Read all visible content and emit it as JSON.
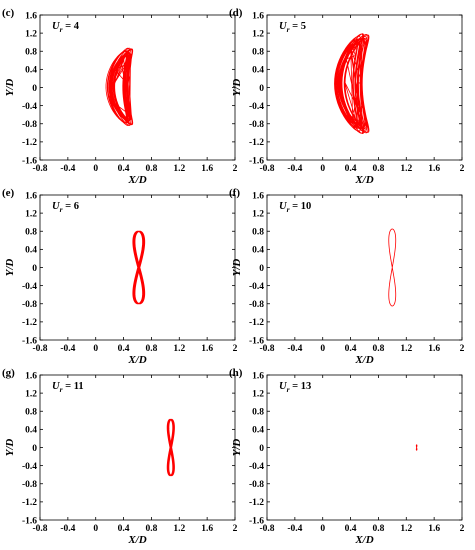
{
  "figure": {
    "series_color": "#ff0000",
    "axis_color": "#000000"
  },
  "chart_data": [
    {
      "type": "line",
      "panel_label": "(c)",
      "annotation": {
        "symbol": "U",
        "subscript": "r",
        "equals": " = ",
        "value": "4"
      },
      "xlabel": "X/D",
      "ylabel": "Y/D",
      "xlim": [
        -0.8,
        2
      ],
      "ylim": [
        -1.6,
        1.6
      ],
      "xticks": [
        "-0.8",
        "-0.4",
        "0",
        "0.4",
        "0.8",
        "1.2",
        "1.6",
        "2"
      ],
      "yticks": [
        "1.6",
        "1.2",
        "0.8",
        "0.4",
        "0",
        "-0.4",
        "-0.8",
        "-1.2",
        "-1.6"
      ],
      "orbit": {
        "shape": "chaotic-crescent",
        "x_min": 0.05,
        "x_max": 0.75,
        "y_min": -0.85,
        "y_max": 0.88
      }
    },
    {
      "type": "line",
      "panel_label": "(d)",
      "annotation": {
        "symbol": "U",
        "subscript": "r",
        "equals": " = ",
        "value": "5"
      },
      "xlabel": "X/D",
      "ylabel": "Y/D",
      "xlim": [
        -0.8,
        2
      ],
      "ylim": [
        -1.6,
        1.6
      ],
      "xticks": [
        "-0.8",
        "-0.4",
        "0",
        "0.4",
        "0.8",
        "1.2",
        "1.6",
        "2"
      ],
      "yticks": [
        "1.6",
        "1.2",
        "0.8",
        "0.4",
        "0",
        "-0.4",
        "-0.8",
        "-1.2",
        "-1.6"
      ],
      "orbit": {
        "shape": "chaotic-crescent",
        "x_min": 0.0,
        "x_max": 0.95,
        "y_min": -1.05,
        "y_max": 1.22
      }
    },
    {
      "type": "line",
      "panel_label": "(e)",
      "annotation": {
        "symbol": "U",
        "subscript": "r",
        "equals": " = ",
        "value": "6"
      },
      "xlabel": "X/D",
      "ylabel": "Y/D",
      "xlim": [
        -0.8,
        2
      ],
      "ylim": [
        -1.6,
        1.6
      ],
      "xticks": [
        "-0.8",
        "-0.4",
        "0",
        "0.4",
        "0.8",
        "1.2",
        "1.6",
        "2"
      ],
      "yticks": [
        "1.6",
        "1.2",
        "0.8",
        "0.4",
        "0",
        "-0.4",
        "-0.8",
        "-1.2",
        "-1.6"
      ],
      "orbit": {
        "shape": "figure-eight",
        "x_center": 0.62,
        "half_width": 0.07,
        "y_amplitude": 0.8,
        "cycles": 10
      }
    },
    {
      "type": "line",
      "panel_label": "(f)",
      "annotation": {
        "symbol": "U",
        "subscript": "r",
        "equals": " = ",
        "value": "10"
      },
      "xlabel": "X/D",
      "ylabel": "Y/D",
      "xlim": [
        -0.8,
        2
      ],
      "ylim": [
        -1.6,
        1.6
      ],
      "xticks": [
        "-0.8",
        "-0.4",
        "0",
        "0.4",
        "0.8",
        "1.2",
        "1.6",
        "2"
      ],
      "yticks": [
        "1.6",
        "1.2",
        "0.8",
        "0.4",
        "0",
        "-0.4",
        "-0.8",
        "-1.2",
        "-1.6"
      ],
      "orbit": {
        "shape": "figure-eight",
        "x_center": 1.0,
        "half_width": 0.05,
        "y_amplitude": 0.85,
        "cycles": 1
      }
    },
    {
      "type": "line",
      "panel_label": "(g)",
      "annotation": {
        "symbol": "U",
        "subscript": "r",
        "equals": " = ",
        "value": "11"
      },
      "xlabel": "X/D",
      "ylabel": "Y/D",
      "xlim": [
        -0.8,
        2
      ],
      "ylim": [
        -1.6,
        1.6
      ],
      "xticks": [
        "-0.8",
        "-0.4",
        "0",
        "0.4",
        "0.8",
        "1.2",
        "1.6",
        "2"
      ],
      "yticks": [
        "1.6",
        "1.2",
        "0.8",
        "0.4",
        "0",
        "-0.4",
        "-0.8",
        "-1.2",
        "-1.6"
      ],
      "orbit": {
        "shape": "figure-eight",
        "x_center": 1.08,
        "half_width": 0.04,
        "y_amplitude": 0.62,
        "cycles": 8
      }
    },
    {
      "type": "line",
      "panel_label": "(h)",
      "annotation": {
        "symbol": "U",
        "subscript": "r",
        "equals": " = ",
        "value": "13"
      },
      "xlabel": "X/D",
      "ylabel": "Y/D",
      "xlim": [
        -0.8,
        2
      ],
      "ylim": [
        -1.6,
        1.6
      ],
      "xticks": [
        "-0.8",
        "-0.4",
        "0",
        "0.4",
        "0.8",
        "1.2",
        "1.6",
        "2"
      ],
      "yticks": [
        "1.6",
        "1.2",
        "0.8",
        "0.4",
        "0",
        "-0.4",
        "-0.8",
        "-1.2",
        "-1.6"
      ],
      "orbit": {
        "shape": "small-line",
        "x_center": 1.35,
        "half_width": 0.005,
        "y_amplitude": 0.06,
        "cycles": 1
      }
    }
  ]
}
